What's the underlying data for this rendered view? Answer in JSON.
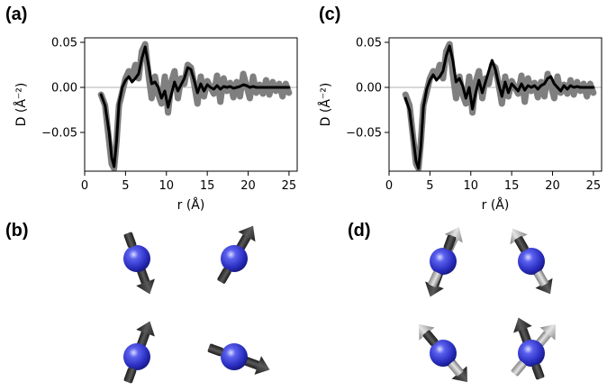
{
  "panels": {
    "a": "(a)",
    "b": "(b)",
    "c": "(c)",
    "d": "(d)"
  },
  "colors": {
    "experiment": "#7f7f7f",
    "fit": "#000000",
    "zero_line": "#b0b0b0",
    "sphere": "#2f33c2",
    "arrow_dark": "#3a3a3a",
    "arrow_light": "#a8a8a8"
  },
  "chart_data": [
    {
      "panel": "(a)",
      "type": "line",
      "xlabel": "r (Å)",
      "ylabel": "D (Å⁻²)",
      "xlim": [
        0,
        26
      ],
      "ylim": [
        -0.093,
        0.055
      ],
      "xticks": [
        0,
        5,
        10,
        15,
        20,
        25
      ],
      "xtick_labels": [
        "0",
        "5",
        "10",
        "15",
        "20",
        "25"
      ],
      "yticks": [
        0.05,
        0.0,
        -0.05
      ],
      "ytick_labels": [
        "0.05",
        "0.00",
        "−0.05"
      ],
      "grid": false,
      "series": [
        {
          "role": "experiment",
          "x": [
            2.0,
            2.5,
            3.0,
            3.3,
            3.6,
            3.9,
            4.2,
            4.6,
            5.0,
            5.4,
            5.8,
            6.2,
            6.6,
            7.0,
            7.4,
            7.8,
            8.2,
            8.6,
            9.0,
            9.4,
            9.8,
            10.2,
            10.6,
            11.0,
            11.4,
            11.8,
            12.2,
            12.6,
            13.0,
            13.4,
            13.8,
            14.2,
            14.6,
            15.0,
            15.4,
            15.8,
            16.2,
            16.6,
            17.0,
            17.4,
            17.8,
            18.2,
            18.6,
            19.0,
            19.4,
            19.8,
            20.2,
            20.6,
            21.0,
            21.4,
            21.8,
            22.2,
            22.6,
            23.0,
            23.4,
            23.8,
            24.2,
            24.6,
            25.0
          ],
          "y": [
            -0.008,
            -0.02,
            -0.06,
            -0.085,
            -0.09,
            -0.06,
            -0.02,
            -0.005,
            0.01,
            0.018,
            0.012,
            0.025,
            0.01,
            0.04,
            0.048,
            0.015,
            -0.012,
            0.012,
            -0.008,
            -0.018,
            0.012,
            -0.028,
            0.006,
            0.018,
            -0.012,
            0.01,
            0.004,
            0.025,
            0.022,
            0.004,
            -0.018,
            0.012,
            -0.01,
            0.007,
            0.0,
            -0.007,
            0.013,
            -0.016,
            0.01,
            -0.004,
            0.005,
            -0.011,
            0.006,
            -0.01,
            0.015,
            0.002,
            -0.012,
            0.012,
            -0.006,
            0.003,
            -0.007,
            0.008,
            -0.008,
            0.006,
            -0.004,
            0.004,
            -0.01,
            0.004,
            -0.006
          ]
        },
        {
          "role": "fit",
          "x": [
            2.0,
            2.5,
            3.0,
            3.3,
            3.6,
            3.9,
            4.2,
            4.6,
            5.0,
            5.4,
            5.8,
            6.2,
            6.6,
            7.0,
            7.4,
            7.8,
            8.2,
            8.6,
            9.0,
            9.4,
            9.8,
            10.2,
            10.6,
            11.0,
            11.4,
            11.8,
            12.2,
            12.6,
            13.0,
            13.4,
            13.8,
            14.2,
            14.6,
            15.0,
            15.4,
            15.8,
            16.2,
            16.6,
            17.0,
            17.4,
            17.8,
            18.2,
            18.6,
            19.0,
            19.4,
            19.8,
            20.2,
            20.6,
            21.0,
            21.4,
            21.8,
            22.2,
            22.6,
            23.0,
            23.4,
            23.8,
            24.2,
            24.6,
            25.0
          ],
          "y": [
            -0.008,
            -0.02,
            -0.05,
            -0.078,
            -0.088,
            -0.06,
            -0.018,
            0.0,
            0.008,
            0.012,
            0.006,
            0.01,
            0.015,
            0.032,
            0.045,
            0.025,
            0.004,
            0.006,
            0.0,
            -0.012,
            -0.004,
            -0.022,
            -0.008,
            0.006,
            -0.004,
            0.003,
            0.01,
            0.022,
            0.02,
            0.008,
            -0.006,
            0.004,
            -0.004,
            0.003,
            0.0,
            -0.002,
            0.002,
            -0.002,
            0.001,
            0.0,
            0.001,
            -0.001,
            0.0,
            0.001,
            0.003,
            0.002,
            0.0,
            0.001,
            0.0,
            0.0,
            0.0,
            0.0,
            0.0,
            0.0,
            0.0,
            0.0,
            0.0,
            0.0,
            0.0
          ]
        }
      ]
    },
    {
      "panel": "(c)",
      "type": "line",
      "xlabel": "r (Å)",
      "ylabel": "D (Å⁻²)",
      "xlim": [
        0,
        26
      ],
      "ylim": [
        -0.093,
        0.055
      ],
      "xticks": [
        0,
        5,
        10,
        15,
        20,
        25
      ],
      "xtick_labels": [
        "0",
        "5",
        "10",
        "15",
        "20",
        "25"
      ],
      "yticks": [
        0.05,
        0.0,
        -0.05
      ],
      "ytick_labels": [
        "0.05",
        "0.00",
        "−0.05"
      ],
      "grid": false,
      "series": [
        {
          "role": "experiment",
          "x": [
            2.0,
            2.5,
            3.0,
            3.3,
            3.6,
            3.9,
            4.2,
            4.6,
            5.0,
            5.4,
            5.8,
            6.2,
            6.6,
            7.0,
            7.4,
            7.8,
            8.2,
            8.6,
            9.0,
            9.4,
            9.8,
            10.2,
            10.6,
            11.0,
            11.4,
            11.8,
            12.2,
            12.6,
            13.0,
            13.4,
            13.8,
            14.2,
            14.6,
            15.0,
            15.4,
            15.8,
            16.2,
            16.6,
            17.0,
            17.4,
            17.8,
            18.2,
            18.6,
            19.0,
            19.4,
            19.8,
            20.2,
            20.6,
            21.0,
            21.4,
            21.8,
            22.2,
            22.6,
            23.0,
            23.4,
            23.8,
            24.2,
            24.6,
            25.0
          ],
          "y": [
            -0.008,
            -0.02,
            -0.06,
            -0.085,
            -0.09,
            -0.06,
            -0.02,
            -0.005,
            0.01,
            0.018,
            0.012,
            0.025,
            0.01,
            0.04,
            0.048,
            0.015,
            -0.012,
            0.012,
            -0.008,
            -0.018,
            0.012,
            -0.028,
            0.006,
            0.018,
            -0.012,
            0.01,
            0.004,
            0.025,
            0.022,
            0.004,
            -0.018,
            0.012,
            -0.01,
            0.007,
            0.0,
            -0.007,
            0.013,
            -0.016,
            0.01,
            -0.004,
            0.005,
            -0.011,
            0.006,
            -0.01,
            0.015,
            0.002,
            -0.012,
            0.012,
            -0.006,
            0.003,
            -0.007,
            0.008,
            -0.008,
            0.006,
            -0.004,
            0.004,
            -0.01,
            0.004,
            -0.006
          ]
        },
        {
          "role": "fit",
          "x": [
            2.0,
            2.5,
            3.0,
            3.3,
            3.6,
            3.9,
            4.2,
            4.6,
            5.0,
            5.4,
            5.8,
            6.2,
            6.6,
            7.0,
            7.4,
            7.8,
            8.2,
            8.6,
            9.0,
            9.4,
            9.8,
            10.2,
            10.6,
            11.0,
            11.4,
            11.8,
            12.2,
            12.6,
            13.0,
            13.4,
            13.8,
            14.2,
            14.6,
            15.0,
            15.4,
            15.8,
            16.2,
            16.6,
            17.0,
            17.4,
            17.8,
            18.2,
            18.6,
            19.0,
            19.4,
            19.8,
            20.2,
            20.6,
            21.0,
            21.4,
            21.8,
            22.2,
            22.6,
            23.0,
            23.4,
            23.8,
            24.2,
            24.6,
            25.0
          ],
          "y": [
            -0.012,
            -0.025,
            -0.06,
            -0.082,
            -0.09,
            -0.065,
            -0.022,
            -0.002,
            0.008,
            0.014,
            0.008,
            0.012,
            0.018,
            0.035,
            0.046,
            0.03,
            0.006,
            0.01,
            0.002,
            -0.012,
            0.0,
            -0.024,
            -0.006,
            0.008,
            -0.006,
            0.006,
            0.018,
            0.03,
            0.02,
            0.004,
            -0.01,
            0.006,
            -0.006,
            0.004,
            0.0,
            -0.004,
            0.004,
            -0.003,
            0.002,
            0.0,
            0.002,
            -0.002,
            0.002,
            0.004,
            0.01,
            0.012,
            0.004,
            0.0,
            -0.004,
            0.002,
            -0.002,
            0.002,
            0.0,
            0.001,
            0.0,
            0.0,
            0.0,
            0.0,
            0.0
          ]
        }
      ]
    }
  ],
  "spin_panels": {
    "b": [
      {
        "dark_angle": 160,
        "light_angle": null
      },
      {
        "dark_angle": 30,
        "light_angle": null
      },
      {
        "dark_angle": 20,
        "light_angle": null
      },
      {
        "dark_angle": 110,
        "light_angle": null
      }
    ],
    "d": [
      {
        "dark_angle": 200,
        "light_angle": 25
      },
      {
        "dark_angle": 150,
        "light_angle": 330
      },
      {
        "dark_angle": 140,
        "light_angle": 320
      },
      {
        "dark_angle": 340,
        "light_angle": 40
      }
    ]
  }
}
